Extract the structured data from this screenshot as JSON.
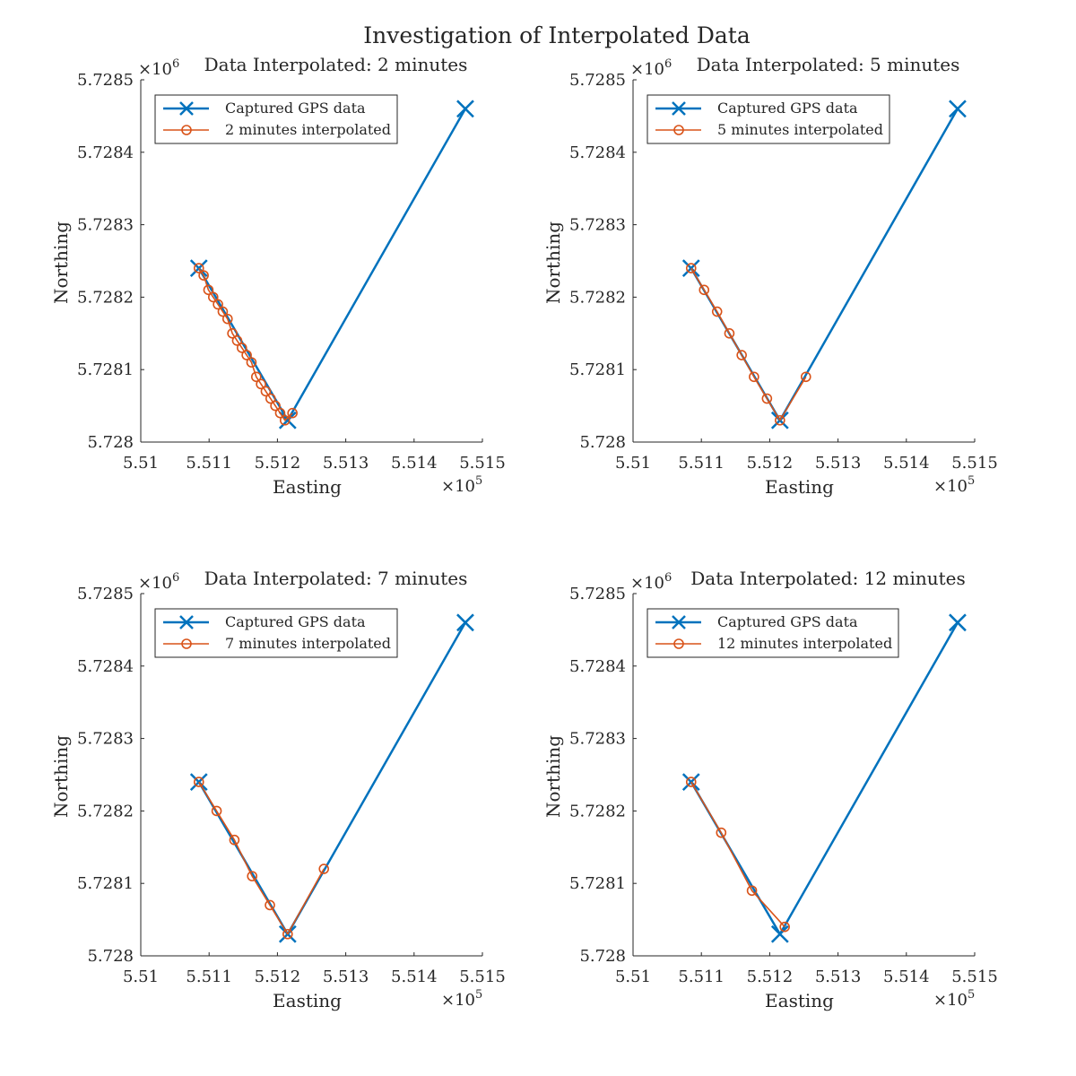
{
  "figure": {
    "title": "Investigation of Interpolated Data"
  },
  "colors": {
    "captured": "#0072BD",
    "interpolated": "#D95319",
    "axis": "#262626",
    "background": "#ffffff"
  },
  "chart_data": [
    {
      "type": "line",
      "title": "Data Interpolated: 2 minutes",
      "xlabel": "Easting",
      "ylabel": "Northing",
      "x_exponent": "×10",
      "x_exponent_power": "5",
      "y_exponent": "×10",
      "y_exponent_power": "6",
      "xlim": [
        5.51,
        5.515
      ],
      "ylim": [
        5.728,
        5.7285
      ],
      "xticks": [
        "5.51",
        "5.511",
        "5.512",
        "5.513",
        "5.514",
        "5.515"
      ],
      "yticks": [
        "5.728",
        "5.7281",
        "5.7282",
        "5.7283",
        "5.7284",
        "5.7285"
      ],
      "legend_position": "top-left",
      "grid": false,
      "series": [
        {
          "name": "Captured GPS data",
          "marker": "x",
          "x": [
            5.51085,
            5.51215,
            5.51475
          ],
          "y": [
            5.72824,
            5.72803,
            5.72846
          ]
        },
        {
          "name": "2 minutes interpolated",
          "marker": "o",
          "x": [
            5.51085,
            5.51092,
            5.51099,
            5.51106,
            5.51113,
            5.5112,
            5.51127,
            5.51134,
            5.51141,
            5.51148,
            5.51155,
            5.51162,
            5.51169,
            5.51176,
            5.51183,
            5.5119,
            5.51197,
            5.51204,
            5.51211,
            5.51222
          ],
          "y": [
            5.72824,
            5.72823,
            5.72821,
            5.7282,
            5.72819,
            5.72818,
            5.72817,
            5.72815,
            5.72814,
            5.72813,
            5.72812,
            5.72811,
            5.72809,
            5.72808,
            5.72807,
            5.72806,
            5.72805,
            5.72804,
            5.72803,
            5.72804
          ]
        }
      ]
    },
    {
      "type": "line",
      "title": "Data Interpolated: 5 minutes",
      "xlabel": "Easting",
      "ylabel": "Northing",
      "x_exponent": "×10",
      "x_exponent_power": "5",
      "y_exponent": "×10",
      "y_exponent_power": "6",
      "xlim": [
        5.51,
        5.515
      ],
      "ylim": [
        5.728,
        5.7285
      ],
      "xticks": [
        "5.51",
        "5.511",
        "5.512",
        "5.513",
        "5.514",
        "5.515"
      ],
      "yticks": [
        "5.728",
        "5.7281",
        "5.7282",
        "5.7283",
        "5.7284",
        "5.7285"
      ],
      "legend_position": "top-left",
      "grid": false,
      "series": [
        {
          "name": "Captured GPS data",
          "marker": "x",
          "x": [
            5.51085,
            5.51215,
            5.51475
          ],
          "y": [
            5.72824,
            5.72803,
            5.72846
          ]
        },
        {
          "name": "5 minutes interpolated",
          "marker": "o",
          "x": [
            5.51085,
            5.51104,
            5.51123,
            5.51141,
            5.51159,
            5.51177,
            5.51196,
            5.51215,
            5.51253
          ],
          "y": [
            5.72824,
            5.72821,
            5.72818,
            5.72815,
            5.72812,
            5.72809,
            5.72806,
            5.72803,
            5.72809
          ]
        }
      ]
    },
    {
      "type": "line",
      "title": "Data Interpolated: 7 minutes",
      "xlabel": "Easting",
      "ylabel": "Northing",
      "x_exponent": "×10",
      "x_exponent_power": "5",
      "y_exponent": "×10",
      "y_exponent_power": "6",
      "xlim": [
        5.51,
        5.515
      ],
      "ylim": [
        5.728,
        5.7285
      ],
      "xticks": [
        "5.51",
        "5.511",
        "5.512",
        "5.513",
        "5.514",
        "5.515"
      ],
      "yticks": [
        "5.728",
        "5.7281",
        "5.7282",
        "5.7283",
        "5.7284",
        "5.7285"
      ],
      "legend_position": "top-left",
      "grid": false,
      "series": [
        {
          "name": "Captured GPS data",
          "marker": "x",
          "x": [
            5.51085,
            5.51215,
            5.51475
          ],
          "y": [
            5.72824,
            5.72803,
            5.72846
          ]
        },
        {
          "name": "7 minutes interpolated",
          "marker": "o",
          "x": [
            5.51085,
            5.51111,
            5.51137,
            5.51163,
            5.51189,
            5.51215,
            5.51268
          ],
          "y": [
            5.72824,
            5.7282,
            5.72816,
            5.72811,
            5.72807,
            5.72803,
            5.72812
          ]
        }
      ]
    },
    {
      "type": "line",
      "title": "Data Interpolated: 12 minutes",
      "xlabel": "Easting",
      "ylabel": "Northing",
      "x_exponent": "×10",
      "x_exponent_power": "5",
      "y_exponent": "×10",
      "y_exponent_power": "6",
      "xlim": [
        5.51,
        5.515
      ],
      "ylim": [
        5.728,
        5.7285
      ],
      "xticks": [
        "5.51",
        "5.511",
        "5.512",
        "5.513",
        "5.514",
        "5.515"
      ],
      "yticks": [
        "5.728",
        "5.7281",
        "5.7282",
        "5.7283",
        "5.7284",
        "5.7285"
      ],
      "legend_position": "top-left",
      "grid": false,
      "series": [
        {
          "name": "Captured GPS data",
          "marker": "x",
          "x": [
            5.51085,
            5.51215,
            5.51475
          ],
          "y": [
            5.72824,
            5.72803,
            5.72846
          ]
        },
        {
          "name": "12 minutes interpolated",
          "marker": "o",
          "x": [
            5.51085,
            5.51129,
            5.51174,
            5.51222
          ],
          "y": [
            5.72824,
            5.72817,
            5.72809,
            5.72804
          ]
        }
      ]
    }
  ]
}
